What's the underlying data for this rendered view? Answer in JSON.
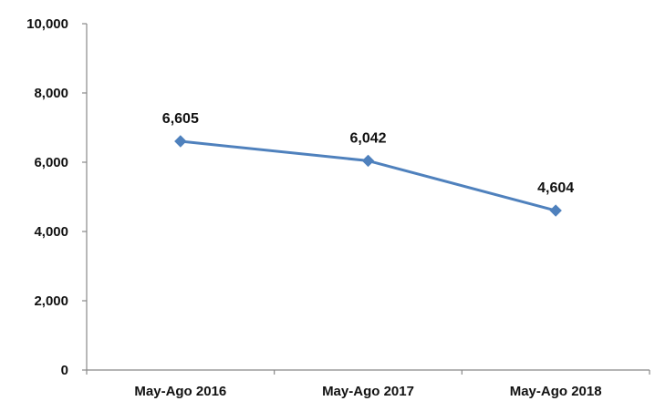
{
  "chart_data": {
    "type": "line",
    "categories": [
      "May-Ago 2016",
      "May-Ago 2017",
      "May-Ago 2018"
    ],
    "series": [
      {
        "values": [
          6605,
          6042,
          4604
        ],
        "data_labels": [
          "6,605",
          "6,042",
          "4,604"
        ],
        "color": "#4F81BD",
        "marker": "diamond"
      }
    ],
    "ylim": [
      0,
      10000
    ],
    "y_ticks": [
      0,
      2000,
      4000,
      6000,
      8000,
      10000
    ],
    "y_tick_labels": [
      "0",
      "2,000",
      "4,000",
      "6,000",
      "8,000",
      "10,000"
    ],
    "grid": false,
    "axis_color": "#888888"
  }
}
